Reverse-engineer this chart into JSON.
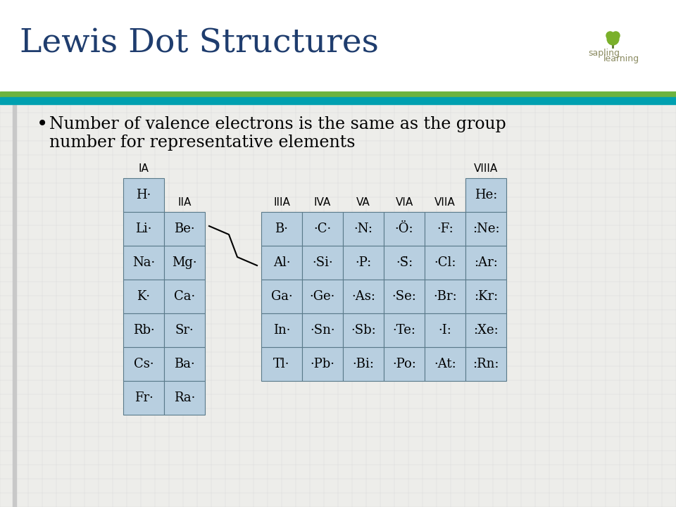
{
  "title": "Lewis Dot Structures",
  "title_color": "#1f3d6e",
  "title_fontsize": 34,
  "bullet_text_line1": "Number of valence electrons is the same as the group",
  "bullet_text_line2": "number for representative elements",
  "bullet_fontsize": 17,
  "bg_color": "#ffffff",
  "content_bg": "#ededea",
  "bar_green": "#6db33f",
  "bar_teal": "#00a0b0",
  "cell_bg": "#b8cfe0",
  "cell_border": "#5a7a8a",
  "group_labels_top": [
    "IA",
    "VIIIA"
  ],
  "group_labels_mid": [
    "IIA",
    "IIIA",
    "IVA",
    "VA",
    "VIA",
    "VIIA"
  ],
  "elements": [
    [
      "H·",
      0,
      0
    ],
    [
      "He:",
      7,
      0
    ],
    [
      "Li·",
      0,
      1
    ],
    [
      "Be·",
      1,
      1
    ],
    [
      "B·",
      2,
      1
    ],
    [
      "·C·",
      3,
      1
    ],
    [
      "·N:",
      4,
      1
    ],
    [
      "·Ö:",
      5,
      1
    ],
    [
      "·F:",
      6,
      1
    ],
    [
      ":Ne:",
      7,
      1
    ],
    [
      "Na·",
      0,
      2
    ],
    [
      "Mg·",
      1,
      2
    ],
    [
      "Al·",
      2,
      2
    ],
    [
      "·Si·",
      3,
      2
    ],
    [
      "·P:",
      4,
      2
    ],
    [
      "·S̈:",
      5,
      2
    ],
    [
      "·Cl:",
      6,
      2
    ],
    [
      ":Ar:",
      7,
      2
    ],
    [
      "K·",
      0,
      3
    ],
    [
      "Ca·",
      1,
      3
    ],
    [
      "Ga·",
      2,
      3
    ],
    [
      "·Ge·",
      3,
      3
    ],
    [
      "·As:",
      4,
      3
    ],
    [
      "·Se:",
      5,
      3
    ],
    [
      "·Br:",
      6,
      3
    ],
    [
      ":Kr:",
      7,
      3
    ],
    [
      "Rb·",
      0,
      4
    ],
    [
      "Sr·",
      1,
      4
    ],
    [
      "In·",
      2,
      4
    ],
    [
      "·Sn·",
      3,
      4
    ],
    [
      "·Sb:",
      4,
      4
    ],
    [
      "·Te:",
      5,
      4
    ],
    [
      "·I:",
      6,
      4
    ],
    [
      ":Xe:",
      7,
      4
    ],
    [
      "Cs·",
      0,
      5
    ],
    [
      "Ba·",
      1,
      5
    ],
    [
      "Tl·",
      2,
      5
    ],
    [
      "·Pb·",
      3,
      5
    ],
    [
      "·Bi:",
      4,
      5
    ],
    [
      "·Po:",
      5,
      5
    ],
    [
      "·At:",
      6,
      5
    ],
    [
      ":Rn:",
      7,
      5
    ],
    [
      "Fr·",
      0,
      6
    ],
    [
      "Ra·",
      1,
      6
    ]
  ]
}
